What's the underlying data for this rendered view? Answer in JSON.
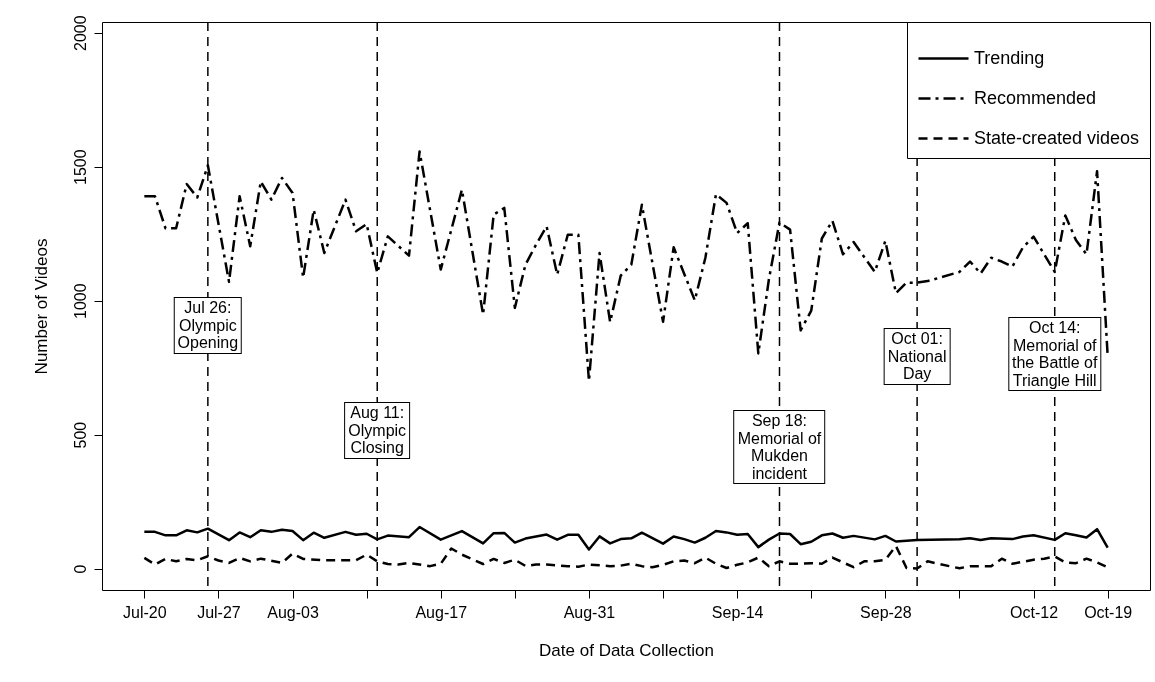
{
  "chart_data": {
    "type": "line",
    "xlabel": "Date of Data Collection",
    "ylabel": "Number of Videos",
    "legend": "top right",
    "xlim": [
      "--07-16",
      "--10-23"
    ],
    "ylim": [
      -80,
      2040
    ],
    "yticks": [
      0,
      500,
      1000,
      1500,
      2000
    ],
    "xticks": [
      {
        "value": "--07-20",
        "label": "Jul-20"
      },
      {
        "value": "--07-27",
        "label": "Jul-27"
      },
      {
        "value": "--08-03",
        "label": "Aug-03"
      },
      {
        "value": "--08-10",
        "label": null
      },
      {
        "value": "--08-17",
        "label": "Aug-17"
      },
      {
        "value": "--08-24",
        "label": null
      },
      {
        "value": "--08-31",
        "label": "Aug-31"
      },
      {
        "value": "--09-07",
        "label": null
      },
      {
        "value": "--09-14",
        "label": "Sep-14"
      },
      {
        "value": "--09-21",
        "label": null
      },
      {
        "value": "--09-28",
        "label": "Sep-28"
      },
      {
        "value": "--10-05",
        "label": null
      },
      {
        "value": "--10-12",
        "label": "Oct-12"
      },
      {
        "value": "--10-19",
        "label": "Oct-19"
      }
    ],
    "series": [
      {
        "name": "Trending",
        "color": "#000000",
        "line_style": "solid",
        "x": [
          "--07-20",
          "--07-21",
          "--07-22",
          "--07-23",
          "--07-24",
          "--07-25",
          "--07-26",
          "--07-28",
          "--07-29",
          "--07-30",
          "--07-31",
          "--08-01",
          "--08-02",
          "--08-03",
          "--08-04",
          "--08-05",
          "--08-06",
          "--08-08",
          "--08-09",
          "--08-10",
          "--08-11",
          "--08-12",
          "--08-14",
          "--08-15",
          "--08-17",
          "--08-19",
          "--08-21",
          "--08-22",
          "--08-23",
          "--08-24",
          "--08-25",
          "--08-27",
          "--08-28",
          "--08-29",
          "--08-30",
          "--08-31",
          "--09-01",
          "--09-02",
          "--09-03",
          "--09-04",
          "--09-05",
          "--09-07",
          "--09-08",
          "--09-09",
          "--09-10",
          "--09-11",
          "--09-12",
          "--09-13",
          "--09-14",
          "--09-15",
          "--09-16",
          "--09-17",
          "--09-18",
          "--09-19",
          "--09-20",
          "--09-21",
          "--09-22",
          "--09-23",
          "--09-24",
          "--09-25",
          "--09-27",
          "--09-28",
          "--09-29",
          "--10-01",
          "--10-05",
          "--10-06",
          "--10-07",
          "--10-08",
          "--10-10",
          "--10-11",
          "--10-12",
          "--10-14",
          "--10-15",
          "--10-16",
          "--10-17",
          "--10-18",
          "--10-19"
        ],
        "values": [
          137,
          137,
          124,
          124,
          143,
          135,
          149,
          106,
          135,
          117,
          143,
          137,
          145,
          140,
          106,
          134,
          115,
          137,
          126,
          130,
          109,
          123,
          117,
          155,
          108,
          140,
          94,
          132,
          133,
          97,
          112,
          127,
          108,
          126,
          126,
          71,
          120,
          94,
          110,
          113,
          134,
          93,
          120,
          110,
          97,
          115,
          140,
          135,
          126,
          129,
          80,
          108,
          131,
          129,
          91,
          100,
          124,
          131,
          115,
          122,
          109,
          122,
          101,
          107,
          109,
          113,
          107,
          113,
          110,
          120,
          124,
          107,
          132,
          124,
          116,
          147,
          78
        ]
      },
      {
        "name": "Recommended",
        "color": "#000000",
        "line_style": "dashdot",
        "x": [
          "--07-20",
          "--07-21",
          "--07-22",
          "--07-23",
          "--07-24",
          "--07-25",
          "--07-26",
          "--07-28",
          "--07-29",
          "--07-30",
          "--07-31",
          "--08-01",
          "--08-02",
          "--08-03",
          "--08-04",
          "--08-05",
          "--08-06",
          "--08-08",
          "--08-09",
          "--08-10",
          "--08-11",
          "--08-12",
          "--08-14",
          "--08-15",
          "--08-17",
          "--08-19",
          "--08-21",
          "--08-22",
          "--08-23",
          "--08-24",
          "--08-25",
          "--08-26",
          "--08-27",
          "--08-28",
          "--08-29",
          "--08-30",
          "--08-31",
          "--09-01",
          "--09-02",
          "--09-03",
          "--09-04",
          "--09-05",
          "--09-07",
          "--09-08",
          "--09-10",
          "--09-11",
          "--09-12",
          "--09-13",
          "--09-14",
          "--09-15",
          "--09-16",
          "--09-17",
          "--09-18",
          "--09-19",
          "--09-20",
          "--09-21",
          "--09-22",
          "--09-23",
          "--09-24",
          "--09-25",
          "--09-27",
          "--09-28",
          "--09-29",
          "--09-30",
          "--10-01",
          "--10-02",
          "--10-05",
          "--10-06",
          "--10-07",
          "--10-08",
          "--10-09",
          "--10-10",
          "--10-11",
          "--10-12",
          "--10-13",
          "--10-14",
          "--10-15",
          "--10-16",
          "--10-17",
          "--10-18",
          "--10-19"
        ],
        "values": [
          1390,
          1390,
          1270,
          1270,
          1435,
          1385,
          1505,
          1070,
          1390,
          1203,
          1445,
          1377,
          1458,
          1402,
          1086,
          1339,
          1178,
          1377,
          1259,
          1286,
          1103,
          1240,
          1168,
          1557,
          1116,
          1414,
          948,
          1321,
          1346,
          973,
          1134,
          1209,
          1277,
          1097,
          1246,
          1246,
          700,
          1178,
          920,
          1093,
          1134,
          1358,
          921,
          1199,
          1001,
          1160,
          1397,
          1365,
          1252,
          1289,
          803,
          1080,
          1292,
          1265,
          889,
          963,
          1232,
          1298,
          1173,
          1219,
          1107,
          1223,
          1028,
          1067,
          1067,
          1073,
          1107,
          1146,
          1101,
          1160,
          1146,
          1127,
          1199,
          1239,
          1173,
          1107,
          1318,
          1226,
          1173,
          1483,
          795
        ]
      },
      {
        "name": "State-created videos",
        "color": "#000000",
        "line_style": "dashed",
        "x": [
          "--07-20",
          "--07-21",
          "--07-22",
          "--07-23",
          "--07-24",
          "--07-25",
          "--07-26",
          "--07-27",
          "--07-28",
          "--07-29",
          "--07-30",
          "--07-31",
          "--08-02",
          "--08-03",
          "--08-04",
          "--08-06",
          "--08-09",
          "--08-10",
          "--08-11",
          "--08-12",
          "--08-13",
          "--08-14",
          "--08-16",
          "--08-17",
          "--08-18",
          "--08-19",
          "--08-21",
          "--08-22",
          "--08-23",
          "--08-24",
          "--08-25",
          "--08-26",
          "--08-27",
          "--08-29",
          "--08-30",
          "--08-31",
          "--09-02",
          "--09-03",
          "--09-04",
          "--09-05",
          "--09-06",
          "--09-07",
          "--09-08",
          "--09-09",
          "--09-10",
          "--09-11",
          "--09-12",
          "--09-13",
          "--09-14",
          "--09-15",
          "--09-16",
          "--09-17",
          "--09-18",
          "--09-19",
          "--09-20",
          "--09-21",
          "--09-22",
          "--09-23",
          "--09-24",
          "--09-25",
          "--09-26",
          "--09-27",
          "--09-28",
          "--09-29",
          "--09-30",
          "--10-01",
          "--10-02",
          "--10-03",
          "--10-05",
          "--10-06",
          "--10-08",
          "--10-09",
          "--10-10",
          "--10-12",
          "--10-13",
          "--10-14",
          "--10-15",
          "--10-16",
          "--10-17",
          "--10-18",
          "--10-19"
        ],
        "values": [
          40,
          15,
          36,
          27,
          36,
          31,
          46,
          30,
          21,
          40,
          27,
          37,
          21,
          56,
          36,
          31,
          31,
          52,
          27,
          17,
          15,
          21,
          9,
          18,
          75,
          52,
          17,
          36,
          21,
          33,
          10,
          15,
          15,
          9,
          7,
          15,
          9,
          11,
          18,
          9,
          5,
          14,
          27,
          30,
          20,
          41,
          18,
          2,
          14,
          23,
          41,
          9,
          27,
          18,
          18,
          20,
          18,
          41,
          23,
          5,
          27,
          27,
          33,
          84,
          2,
          0,
          27,
          18,
          1,
          9,
          9,
          37,
          18,
          33,
          37,
          45,
          23,
          20,
          37,
          23,
          5
        ]
      }
    ],
    "ref_lines": [
      {
        "axis": "x",
        "value": "--07-26",
        "label": "Jul 26:\nOlympic\nOpening",
        "color": "#000000",
        "line_style": "dashed"
      },
      {
        "axis": "x",
        "value": "--08-11",
        "label": "Aug 11:\nOlympic\nClosing",
        "color": "#000000",
        "line_style": "dashed"
      },
      {
        "axis": "x",
        "value": "--09-18",
        "label": "Sep 18:\nMemorial of\nMukden\nincident",
        "color": "#000000",
        "line_style": "dashed"
      },
      {
        "axis": "x",
        "value": "--10-01",
        "label": "Oct 01:\nNational\nDay",
        "color": "#000000",
        "line_style": "dashed"
      },
      {
        "axis": "x",
        "value": "--10-14",
        "label": "Oct 14:\nMemorial of\nthe Battle of\nTriangle Hill",
        "color": "#000000",
        "line_style": "dashed"
      }
    ]
  }
}
